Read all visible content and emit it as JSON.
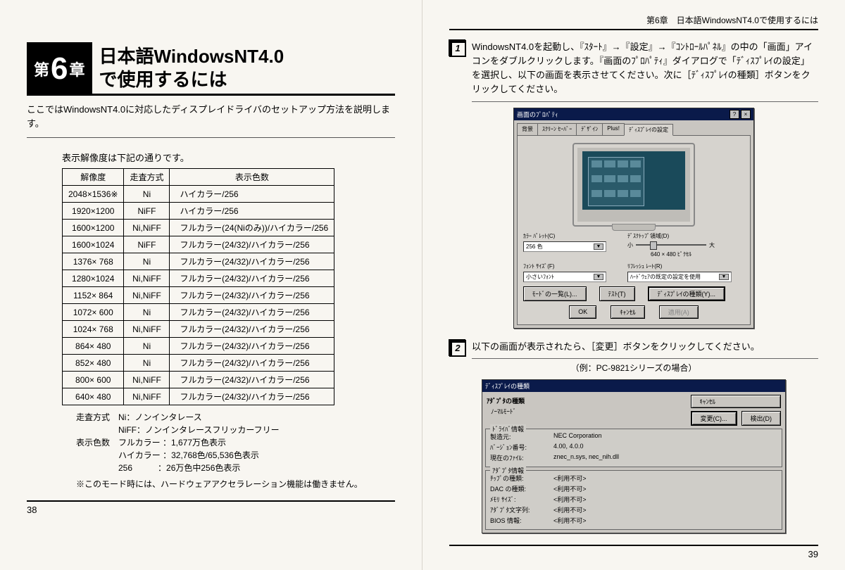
{
  "chapter": {
    "prefix": "第",
    "number": "6",
    "suffix": "章",
    "title_line1": "日本語WindowsNT4.0",
    "title_line2": "で使用するには"
  },
  "running_head": "第6章　日本語WindowsNT4.0で使用するには",
  "intro": "ここではWindowsNT4.0に対応したディスプレイドライバのセットアップ方法を説明します。",
  "table_intro": "表示解像度は下記の通りです。",
  "table": {
    "headers": [
      "解像度",
      "走査方式",
      "表示色数"
    ],
    "rows": [
      [
        "2048×1536※",
        "Ni",
        "ハイカラー/256"
      ],
      [
        "1920×1200",
        "NiFF",
        "ハイカラー/256"
      ],
      [
        "1600×1200",
        "Ni,NiFF",
        "フルカラー(24(Niのみ))/ハイカラー/256"
      ],
      [
        "1600×1024",
        "NiFF",
        "フルカラー(24/32)/ハイカラー/256"
      ],
      [
        "1376× 768",
        "Ni",
        "フルカラー(24/32)/ハイカラー/256"
      ],
      [
        "1280×1024",
        "Ni,NiFF",
        "フルカラー(24/32)/ハイカラー/256"
      ],
      [
        "1152× 864",
        "Ni,NiFF",
        "フルカラー(24/32)/ハイカラー/256"
      ],
      [
        "1072× 600",
        "Ni",
        "フルカラー(24/32)/ハイカラー/256"
      ],
      [
        "1024× 768",
        "Ni,NiFF",
        "フルカラー(24/32)/ハイカラー/256"
      ],
      [
        "864× 480",
        "Ni",
        "フルカラー(24/32)/ハイカラー/256"
      ],
      [
        "852× 480",
        "Ni",
        "フルカラー(24/32)/ハイカラー/256"
      ],
      [
        "800× 600",
        "Ni,NiFF",
        "フルカラー(24/32)/ハイカラー/256"
      ],
      [
        "640× 480",
        "Ni,NiFF",
        "フルカラー(24/32)/ハイカラー/256"
      ]
    ]
  },
  "legend": {
    "l1": "走査方式　Ni：ノンインタレース",
    "l2": "　　　　　NiFF：ノンインタレースフリッカーフリー",
    "l3": "表示色数　フルカラー ：1,677万色表示",
    "l4": "　　　　　ハイカラー ：32,768色/65,536色表示",
    "l5": "　　　　　256　　　：26万色中256色表示"
  },
  "footnote": "※このモード時には、ハードウェアアクセラレーション機能は働きません。",
  "page_left": "38",
  "page_right": "39",
  "step1": "WindowsNT4.0を起動し、『ｽﾀｰﾄ』→『設定』→『ｺﾝﾄﾛｰﾙﾊﾟﾈﾙ』の中の「画面」アイコンをダブルクリックします。『画面のﾌﾟﾛﾊﾟﾃｨ』ダイアログで「ﾃﾞｨｽﾌﾟﾚｲの設定」を選択し、以下の画面を表示させてください。次に［ﾃﾞｨｽﾌﾟﾚｲの種類］ボタンをクリックしてください。",
  "step2": "以下の画面が表示されたら、［変更］ボタンをクリックしてください。",
  "step2_sub": "（例：PC-9821シリーズの場合）",
  "dlg1": {
    "title": "画面のﾌﾟﾛﾊﾟﾃｨ",
    "tabs": [
      "背景",
      "ｽｸﾘｰﾝ ｾｰﾊﾞｰ",
      "ﾃﾞｻﾞｲﾝ",
      "Plus!",
      "ﾃﾞｨｽﾌﾟﾚｲの設定"
    ],
    "color_label": "ｶﾗｰ ﾊﾟﾚｯﾄ(C)",
    "color_value": "256 色",
    "area_label": "ﾃﾞｽｸﾄｯﾌﾟ領域(D)",
    "area_small": "小",
    "area_big": "大",
    "area_value": "640 × 480 ﾋﾟｸｾﾙ",
    "font_label": "ﾌｫﾝﾄ ｻｲｽﾞ(F)",
    "font_value": "小さいﾌｫﾝﾄ",
    "refresh_label": "ﾘﾌﾚｯｼｭ ﾚｰﾄ(R)",
    "refresh_value": "ﾊｰﾄﾞｳｪｱの既定の設定を使用",
    "btn_list": "ﾓｰﾄﾞの一覧(L)...",
    "btn_test": "ﾃｽﾄ(T)",
    "btn_type": "ﾃﾞｨｽﾌﾟﾚｲの種類(Y)...",
    "ok": "OK",
    "cancel": "ｷｬﾝｾﾙ",
    "apply": "適用(A)"
  },
  "dlg2": {
    "title": "ﾃﾞｨｽﾌﾟﾚｲの種類",
    "adapter_header": "ｱﾀﾞﾌﾟﾀの種類",
    "mode": "ﾉｰﾏﾙﾓｰﾄﾞ",
    "change": "変更(C)...",
    "cancel": "ｷｬﾝｾﾙ",
    "detect": "検出(D)",
    "driver_header": "ﾄﾞﾗｲﾊﾞ情報",
    "mfr_k": "製造元:",
    "mfr_v": "NEC Corporation",
    "ver_k": "ﾊﾞｰｼﾞｮﾝ番号:",
    "ver_v": "4.00, 4.0.0",
    "file_k": "現在のﾌｧｲﾙ:",
    "file_v": "znec_n.sys, nec_nih.dll",
    "adapter_info": "ｱﾀﾞﾌﾟﾀ情報",
    "chip_k": "ﾁｯﾌﾟの種類:",
    "chip_v": "<利用不可>",
    "dac_k": "DAC の種類:",
    "dac_v": "<利用不可>",
    "mem_k": "ﾒﾓﾘ ｻｲｽﾞ:",
    "mem_v": "<利用不可>",
    "str_k": "ｱﾀﾞﾌﾟﾀ文字列:",
    "str_v": "<利用不可>",
    "bios_k": "BIOS 情報:",
    "bios_v": "<利用不可>"
  }
}
